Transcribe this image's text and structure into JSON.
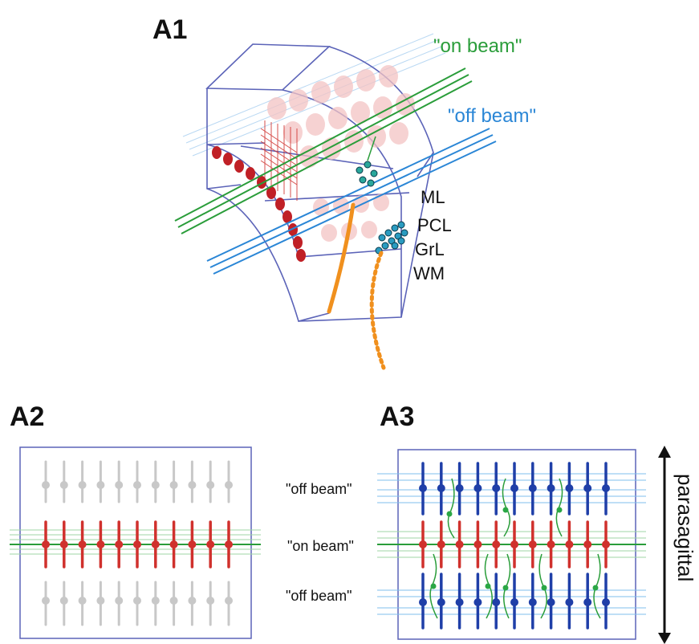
{
  "panels": {
    "a1": {
      "label": "A1"
    },
    "a2": {
      "label": "A2"
    },
    "a3": {
      "label": "A3"
    }
  },
  "a1": {
    "on_beam": "\"on beam\"",
    "off_beam": "\"off beam\"",
    "layers": [
      "ML",
      "PCL",
      "GrL",
      "WM"
    ]
  },
  "a3": {
    "off_beam_top": "\"off beam\"",
    "on_beam": "\"on beam\"",
    "off_beam_bottom": "\"off beam\"",
    "axis": "parasagittal"
  },
  "colors": {
    "on_beam": "#2a9d3a",
    "off_beam": "#2a86d6",
    "purkinje_active": "#d0312d",
    "purkinje_inactive": "#c8c8c8",
    "purkinje_off": "#1f3fa8",
    "fiber": "#f0901e",
    "frame": "#5b63b8"
  },
  "counts": {
    "a2_columns": 11,
    "a3_columns": 11
  }
}
